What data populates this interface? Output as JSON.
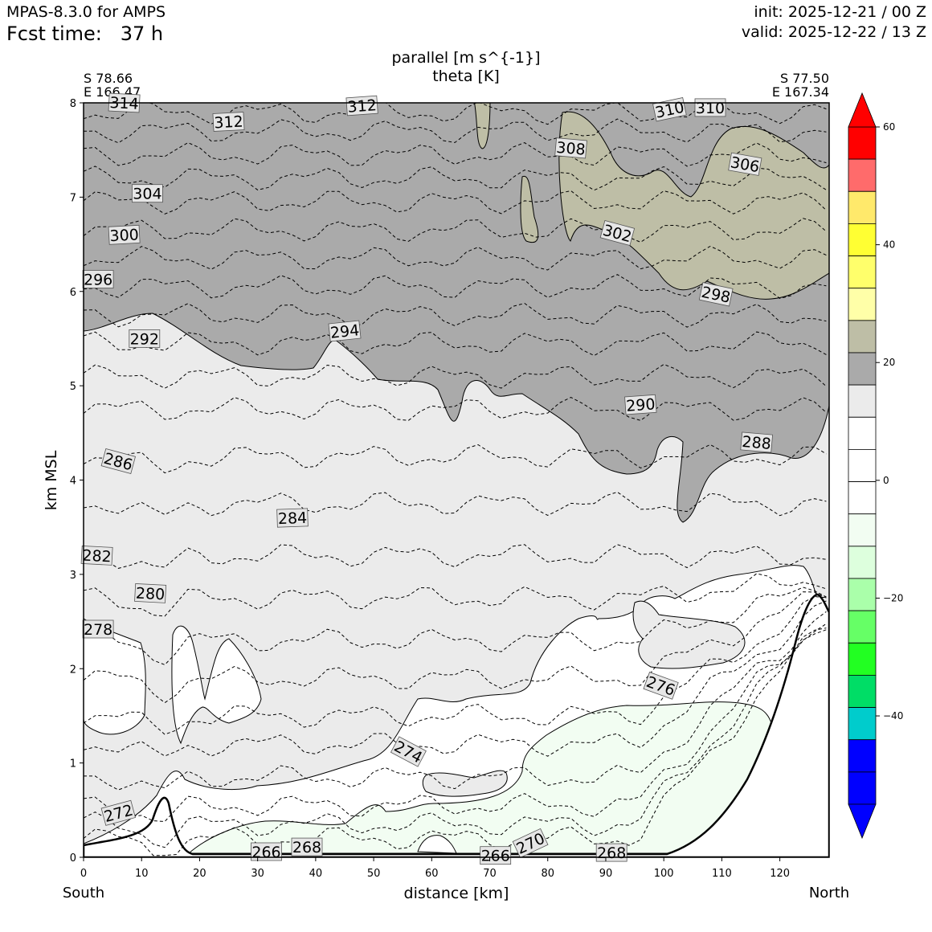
{
  "header": {
    "model": "MPAS-8.3.0 for AMPS",
    "fcst": "Fcst time:   37 h",
    "init": "init: 2025-12-21 / 00 Z",
    "valid": "valid: 2025-12-22 / 13 Z"
  },
  "chart_data": {
    "type": "cross-section contour",
    "title_line1": "parallel [m s^{-1}]",
    "title_line2": "theta [K]",
    "xlabel": "distance [km]",
    "ylabel": "km MSL",
    "xlim": [
      0,
      128.5
    ],
    "ylim": [
      0,
      8
    ],
    "x_ticks": [
      0,
      10,
      20,
      30,
      40,
      50,
      60,
      70,
      80,
      90,
      100,
      110,
      120
    ],
    "y_ticks": [
      0,
      1,
      2,
      3,
      4,
      5,
      6,
      7,
      8
    ],
    "left_end": {
      "lat": "S 78.66",
      "lon": "E 166.47",
      "label": "South"
    },
    "right_end": {
      "lat": "S 77.50",
      "lon": "E 167.34",
      "label": "North"
    },
    "theta_labels": [
      {
        "text": "314",
        "x": 7,
        "y": 8.0,
        "angle": 3
      },
      {
        "text": "312",
        "x": 25,
        "y": 7.8,
        "angle": -3
      },
      {
        "text": "312",
        "x": 48,
        "y": 7.97,
        "angle": -4
      },
      {
        "text": "310",
        "x": 101,
        "y": 7.93,
        "angle": -12
      },
      {
        "text": "310",
        "x": 108,
        "y": 7.95,
        "angle": 0
      },
      {
        "text": "308",
        "x": 84,
        "y": 7.52,
        "angle": 5
      },
      {
        "text": "306",
        "x": 114,
        "y": 7.35,
        "angle": 10
      },
      {
        "text": "304",
        "x": 11,
        "y": 7.04,
        "angle": 0
      },
      {
        "text": "302",
        "x": 92,
        "y": 6.62,
        "angle": 15
      },
      {
        "text": "300",
        "x": 7,
        "y": 6.6,
        "angle": -3
      },
      {
        "text": "298",
        "x": 109,
        "y": 5.97,
        "angle": 12
      },
      {
        "text": "296",
        "x": 2.5,
        "y": 6.13,
        "angle": 0
      },
      {
        "text": "294",
        "x": 45,
        "y": 5.58,
        "angle": -6
      },
      {
        "text": "292",
        "x": 10.5,
        "y": 5.5,
        "angle": 0
      },
      {
        "text": "290",
        "x": 96,
        "y": 4.8,
        "angle": -4
      },
      {
        "text": "288",
        "x": 116,
        "y": 4.4,
        "angle": 5
      },
      {
        "text": "286",
        "x": 6,
        "y": 4.2,
        "angle": 15
      },
      {
        "text": "284",
        "x": 36,
        "y": 3.6,
        "angle": -2
      },
      {
        "text": "282",
        "x": 2.3,
        "y": 3.2,
        "angle": 3
      },
      {
        "text": "280",
        "x": 11.5,
        "y": 2.8,
        "angle": 3
      },
      {
        "text": "278",
        "x": 2.5,
        "y": 2.42,
        "angle": 0
      },
      {
        "text": "276",
        "x": 99.5,
        "y": 1.82,
        "angle": 20
      },
      {
        "text": "274",
        "x": 56,
        "y": 1.12,
        "angle": 28
      },
      {
        "text": "272",
        "x": 6,
        "y": 0.47,
        "angle": -15
      },
      {
        "text": "270",
        "x": 77,
        "y": 0.15,
        "angle": -25
      },
      {
        "text": "268",
        "x": 38.5,
        "y": 0.11,
        "angle": 0
      },
      {
        "text": "268",
        "x": 91,
        "y": 0.05,
        "angle": 0
      },
      {
        "text": "266",
        "x": 31.5,
        "y": 0.06,
        "angle": 0
      },
      {
        "text": "266",
        "x": 71,
        "y": 0.02,
        "angle": 0
      }
    ],
    "shading": {
      "gray_dark_above_km": 5.5,
      "light_gray_band": [
        1.0,
        5.5
      ],
      "notes": "parallel wind shading per colorbar"
    },
    "colorbar": {
      "levels": [
        -60,
        -50,
        -45,
        -40,
        -35,
        -30,
        -25,
        -20,
        -15,
        -10,
        -5,
        0,
        5,
        10,
        15,
        20,
        25,
        30,
        35,
        40,
        45,
        50,
        55,
        60
      ],
      "colors": [
        "#0000ff",
        "#0000ff",
        "#00cccc",
        "#00dd66",
        "#22ff22",
        "#66ff66",
        "#aaffaa",
        "#ddffdd",
        "#f2fdf2",
        "#ffffff",
        "#ffffff",
        "#ffffff",
        "#ebebeb",
        "#aaaaaa",
        "#bebea6",
        "#ffffa8",
        "#ffff66",
        "#ffff22",
        "#ffee66",
        "#ff6666",
        "#ff0000"
      ],
      "colors_top_to_bottom": [
        "#ff0000",
        "#ff6b6b",
        "#ffe96b",
        "#ffff33",
        "#ffff6b",
        "#ffffa8",
        "#bebea6",
        "#aaaaaa",
        "#ebebeb",
        "#ffffff",
        "#ffffff",
        "#ffffff",
        "#f2fdf2",
        "#ddffdd",
        "#aaffaa",
        "#66ff66",
        "#22ff22",
        "#00dd66",
        "#00cccc",
        "#0000ff",
        "#0000ff"
      ],
      "tick_labels": [
        "60",
        "40",
        "20",
        "0",
        "−20",
        "−40"
      ],
      "tick_values": [
        60,
        40,
        20,
        0,
        -20,
        -40
      ],
      "max_arrow": "#ff0000",
      "min_arrow": "#0000ff"
    }
  }
}
